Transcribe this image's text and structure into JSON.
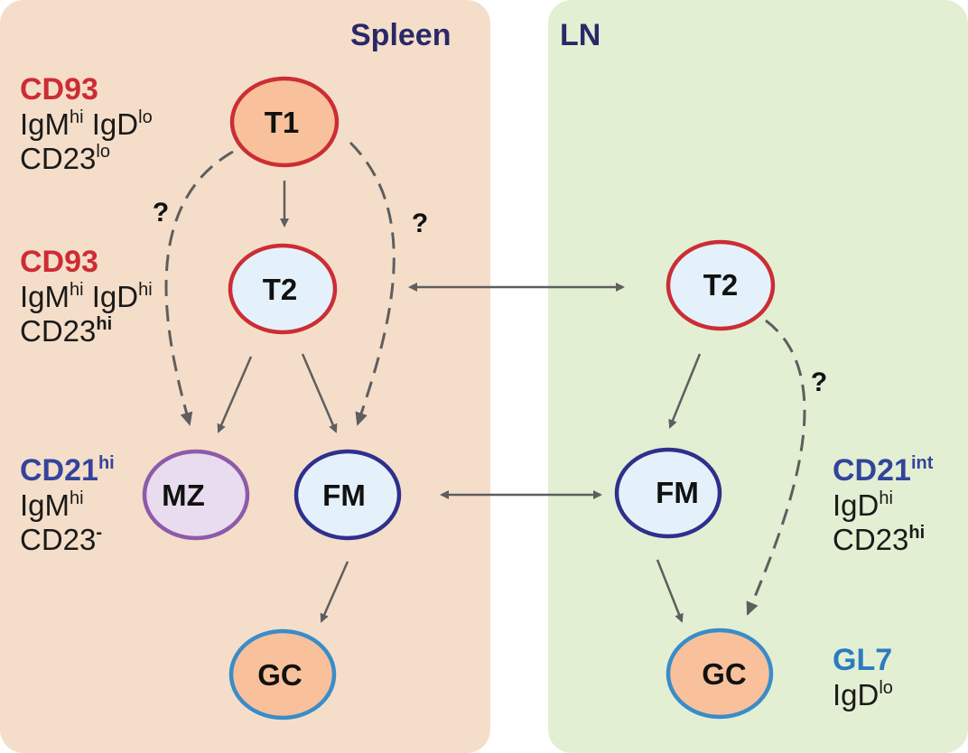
{
  "colors": {
    "spleen_bg": "#f5dec9",
    "ln_bg": "#e3efd3",
    "title": "#2b2868",
    "red": "#cc2d35",
    "blue": "#33449b",
    "cyan": "#2c7bbf",
    "arrow": "#5e5e5e",
    "orange_fill": "#f8c19b",
    "light_blue_fill": "#e4f1fb",
    "lavender_fill": "#e9dcee",
    "purple_stroke": "#8e5aaa",
    "navy_stroke": "#2f2f8c",
    "gc_stroke": "#3a8cc9"
  },
  "panels": {
    "spleen": {
      "title": "Spleen"
    },
    "ln": {
      "title": "LN"
    }
  },
  "nodes": {
    "spleen_t1": "T1",
    "spleen_t2": "T2",
    "spleen_mz": "MZ",
    "spleen_fm": "FM",
    "spleen_gc": "GC",
    "ln_t2": "T2",
    "ln_fm": "FM",
    "ln_gc": "GC"
  },
  "question_mark": "?",
  "markers": {
    "t1": {
      "head": "CD93",
      "l1a": "IgM",
      "l1a_sup": "hi",
      "l1b": "IgD",
      "l1b_sup": "lo",
      "l2": "CD23",
      "l2_sup": "lo"
    },
    "t2": {
      "head": "CD93",
      "l1a": "IgM",
      "l1a_sup": "hi",
      "l1b": "IgD",
      "l1b_sup": "hi",
      "l2": "CD23",
      "l2_sup": "hi"
    },
    "mz": {
      "head": "CD21",
      "head_sup": "hi",
      "l1": "IgM",
      "l1_sup": "hi",
      "l2": "CD23",
      "l2_sup": "-"
    },
    "ln_fm": {
      "head": "CD21",
      "head_sup": "int",
      "l1": "IgD",
      "l1_sup": "hi",
      "l2": "CD23",
      "l2_sup": "hi"
    },
    "gc": {
      "head": "GL7",
      "l1": "IgD",
      "l1_sup": "lo"
    }
  }
}
